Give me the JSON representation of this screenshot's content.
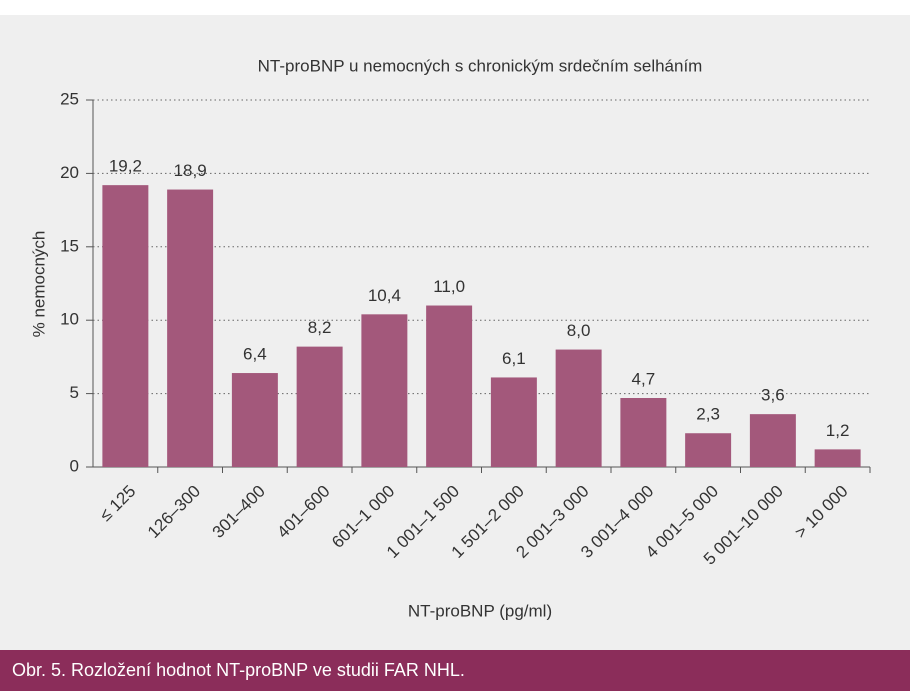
{
  "chart_data": {
    "type": "bar",
    "title": "NT-proBNP u nemocných s chronickým srdečním selháním",
    "x_label": "NT-proBNP (pg/ml)",
    "y_label": "% nemocných",
    "categories": [
      "≤ 125",
      "126–300",
      "301–400",
      "401–600",
      "601–1 000",
      "1 001–1 500",
      "1 501–2 000",
      "2 001–3 000",
      "3 001–4 000",
      "4 001–5 000",
      "5 001–10 000",
      "> 10 000"
    ],
    "values": [
      19.2,
      18.9,
      6.4,
      8.2,
      10.4,
      11.0,
      6.1,
      8.0,
      4.7,
      2.3,
      3.6,
      1.2
    ],
    "value_labels": [
      "19,2",
      "18,9",
      "6,4",
      "8,2",
      "10,4",
      "11,0",
      "6,1",
      "8,0",
      "4,7",
      "2,3",
      "3,6",
      "1,2"
    ],
    "color": "#a3587b",
    "ylim": [
      0,
      25
    ],
    "yticks": [
      0,
      5,
      10,
      15,
      20,
      25
    ],
    "grid": true
  },
  "caption": "Obr. 5. Rozložení hodnot NT-proBNP ve studii FAR NHL."
}
